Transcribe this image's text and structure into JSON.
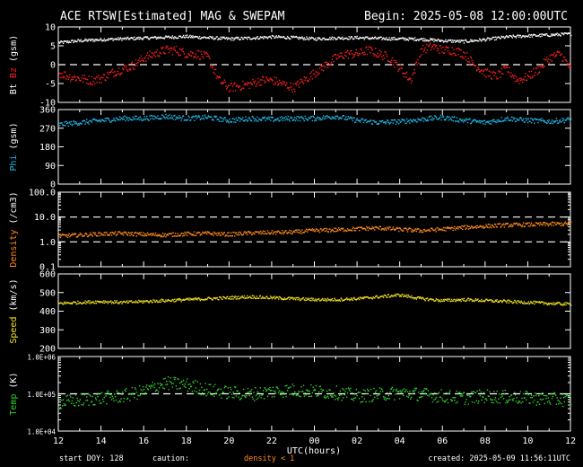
{
  "header": {
    "title": "ACE RTSW[Estimated] MAG & SWEPAM",
    "begin": "Begin: 2025-05-08 12:00:00UTC"
  },
  "footer": {
    "start_doy": "start DOY: 128",
    "caution": "caution:",
    "density_note": "density < 1",
    "created": "created: 2025-05-09 11:56:11UTC"
  },
  "colors": {
    "bt": "#ffffff",
    "bz": "#ff2020",
    "phi": "#20b8e8",
    "density": "#ff8c1a",
    "speed": "#f0e020",
    "temp": "#30d030"
  },
  "chart_data": [
    {
      "type": "scatter",
      "id": "mag",
      "ylabel_parts": [
        "Bt",
        "Bz",
        "(gsm)"
      ],
      "ylim": [
        -10,
        10
      ],
      "yticks": [
        10,
        5,
        0,
        -5,
        -10
      ],
      "ytick_labels": [
        "10",
        "5",
        "0",
        "-5",
        "-10"
      ],
      "dashed": [
        0
      ],
      "series": [
        {
          "name": "Bt",
          "x": [
            0,
            1,
            2,
            3,
            4,
            5,
            6,
            7,
            8,
            9,
            10,
            11,
            12,
            13,
            14,
            15,
            16,
            17,
            18,
            19,
            20,
            21,
            22,
            23,
            24
          ],
          "values": [
            6,
            6.5,
            6.8,
            7,
            7.2,
            7.4,
            7.6,
            7.3,
            7,
            7.2,
            7.5,
            7.3,
            7,
            7.2,
            7.3,
            7.1,
            7,
            6.9,
            6.5,
            6.3,
            6.8,
            7.5,
            7.8,
            8,
            8.3
          ]
        },
        {
          "name": "Bz",
          "x": [
            0,
            0.5,
            1,
            1.5,
            2,
            2.5,
            3,
            3.5,
            4,
            4.5,
            5,
            5.5,
            6,
            6.5,
            7,
            7.5,
            8,
            8.5,
            9,
            9.5,
            10,
            10.5,
            11,
            11.5,
            12,
            12.5,
            13,
            13.5,
            14,
            14.5,
            15,
            15.5,
            16,
            16.5,
            17,
            17.5,
            18,
            18.5,
            19,
            19.5,
            20,
            20.5,
            21,
            21.5,
            22,
            22.5,
            23,
            23.5,
            24
          ],
          "values": [
            -2,
            -3,
            -3.5,
            -4,
            -3.5,
            -2,
            -1,
            0,
            2,
            3,
            4,
            4,
            3,
            3,
            2,
            -4,
            -6,
            -5.5,
            -5,
            -4,
            -4,
            -5,
            -6,
            -4,
            -2,
            0,
            2,
            3,
            3,
            4,
            3,
            2,
            -1,
            -4,
            4,
            5,
            4,
            4,
            3,
            0,
            -2,
            -3,
            -1,
            -4,
            -3,
            -1,
            2,
            3,
            -1
          ]
        }
      ]
    },
    {
      "type": "scatter",
      "id": "phi",
      "ylabel": "Phi (gsm)",
      "ylim": [
        0,
        360
      ],
      "yticks": [
        360,
        270,
        180,
        90,
        0
      ],
      "ytick_labels": [
        "360",
        "270",
        "180",
        "90",
        "0"
      ],
      "series": [
        {
          "name": "Phi",
          "x": [
            0,
            1,
            2,
            3,
            4,
            5,
            6,
            7,
            8,
            9,
            10,
            11,
            12,
            13,
            14,
            15,
            16,
            17,
            18,
            19,
            20,
            21,
            22,
            23,
            24
          ],
          "values": [
            290,
            300,
            310,
            320,
            320,
            330,
            320,
            325,
            310,
            320,
            315,
            320,
            320,
            330,
            310,
            300,
            305,
            315,
            325,
            310,
            300,
            320,
            310,
            305,
            315
          ]
        }
      ]
    },
    {
      "type": "scatter",
      "id": "density",
      "ylabel": "Density (/cm3)",
      "yscale": "log",
      "ylim": [
        0.1,
        100
      ],
      "yticks": [
        100,
        10,
        1,
        0.1
      ],
      "ytick_labels": [
        "100.0",
        "10.0",
        "1.0",
        "0.1"
      ],
      "dashed": [
        10,
        1
      ],
      "series": [
        {
          "name": "Density",
          "x": [
            0,
            1,
            2,
            3,
            4,
            5,
            6,
            7,
            8,
            9,
            10,
            11,
            12,
            13,
            14,
            15,
            16,
            17,
            18,
            19,
            20,
            21,
            22,
            23,
            24
          ],
          "values": [
            1.8,
            2,
            2.2,
            2.3,
            2.1,
            2,
            2.2,
            2.3,
            2.1,
            2.4,
            2.5,
            2.6,
            3,
            3.2,
            3.5,
            3.8,
            3.3,
            3,
            3.4,
            4,
            4.5,
            5,
            5.2,
            5.5,
            5.6
          ]
        }
      ]
    },
    {
      "type": "scatter",
      "id": "speed",
      "ylabel": "Speed (km/s)",
      "ylim": [
        200,
        600
      ],
      "yticks": [
        600,
        500,
        400,
        300,
        200
      ],
      "ytick_labels": [
        "600",
        "500",
        "400",
        "300",
        "200"
      ],
      "series": [
        {
          "name": "Speed",
          "x": [
            0,
            1,
            2,
            3,
            4,
            5,
            6,
            7,
            8,
            9,
            10,
            11,
            12,
            13,
            14,
            15,
            16,
            17,
            18,
            19,
            20,
            21,
            22,
            23,
            24
          ],
          "values": [
            445,
            450,
            455,
            450,
            455,
            460,
            465,
            470,
            475,
            480,
            475,
            470,
            465,
            465,
            470,
            480,
            490,
            470,
            460,
            465,
            460,
            455,
            450,
            445,
            440
          ]
        }
      ]
    },
    {
      "type": "scatter",
      "id": "temp",
      "ylabel": "Temp (K)",
      "yscale": "log",
      "ylim": [
        10000,
        1000000
      ],
      "yticks": [
        1000000,
        100000,
        10000
      ],
      "ytick_labels": [
        "1.0E+06",
        "1.0E+05",
        "1.0E+04"
      ],
      "dashed": [
        100000
      ],
      "xlabel": "UTC(hours)",
      "xticks": [
        0,
        2,
        4,
        6,
        8,
        10,
        12,
        14,
        16,
        18,
        20,
        22,
        24
      ],
      "xtick_labels": [
        "12",
        "14",
        "16",
        "18",
        "20",
        "22",
        "00",
        "02",
        "04",
        "06",
        "08",
        "10",
        "12"
      ],
      "series": [
        {
          "name": "Temp",
          "x": [
            0,
            1,
            2,
            3,
            4,
            5,
            6,
            7,
            8,
            9,
            10,
            11,
            12,
            13,
            14,
            15,
            16,
            17,
            18,
            19,
            20,
            21,
            22,
            23,
            24
          ],
          "values": [
            60000,
            70000,
            80000,
            90000,
            120000,
            200000,
            180000,
            130000,
            110000,
            100000,
            120000,
            130000,
            120000,
            110000,
            90000,
            100000,
            110000,
            100000,
            90000,
            80000,
            90000,
            85000,
            80000,
            75000,
            70000
          ]
        }
      ]
    }
  ]
}
